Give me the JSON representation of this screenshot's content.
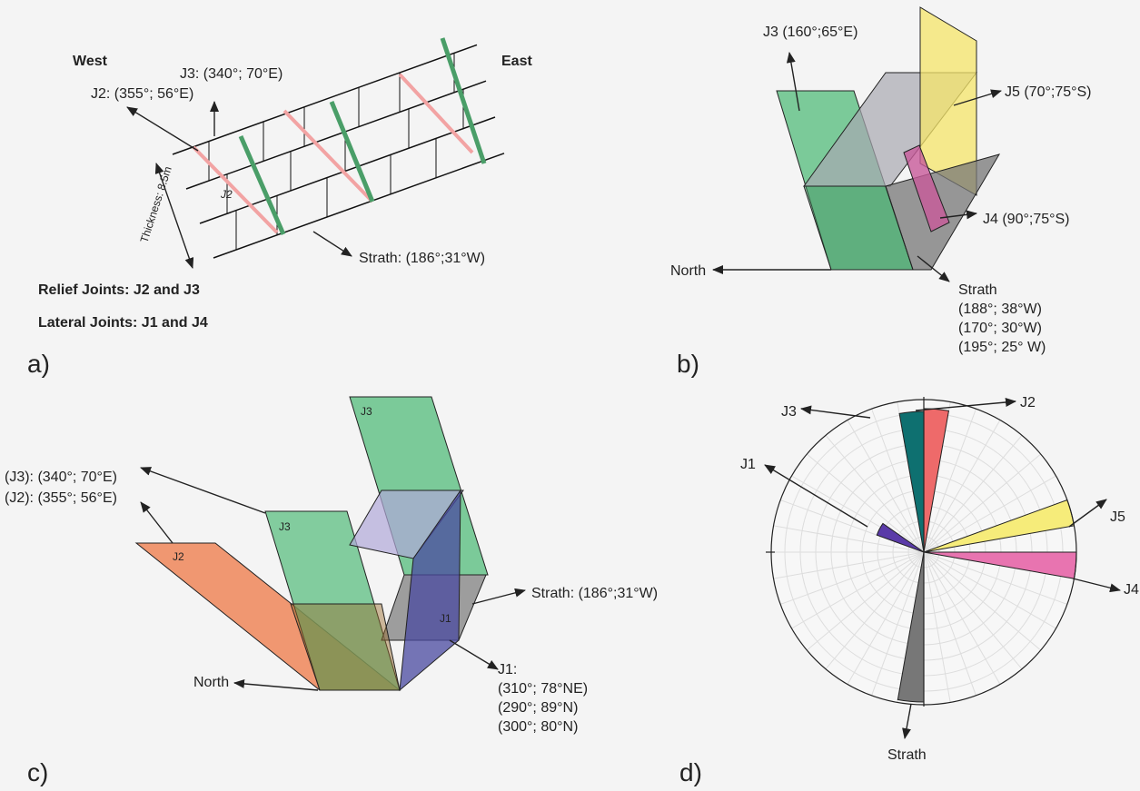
{
  "panel_a": {
    "label": "a)",
    "west": "West",
    "east": "East",
    "j2": "J2: (355°; 56°E)",
    "j3": "J3: (340°; 70°E)",
    "j2_inline": "J2",
    "thickness": "Thickness: 8.5m",
    "strath": "Strath: (186°;31°W)",
    "relief": "Relief Joints: J2 and J3",
    "lateral": "Lateral Joints: J1 and J4"
  },
  "panel_b": {
    "label": "b)",
    "j3": "J3 (160°;65°E)",
    "j5": "J5 (70°;75°S)",
    "j4": "J4 (90°;75°S)",
    "north": "North",
    "strath": {
      "title": "Strath",
      "orientations": [
        "(188°; 38°W)",
        "(170°; 30°W)",
        "(195°; 25° W)"
      ]
    }
  },
  "panel_c": {
    "label": "c)",
    "j3_top": "J3",
    "j3_note": "(J3): (340°; 70°E)",
    "j2_note": "(J2): (355°; 56°E)",
    "j2_plane": "J2",
    "j3_plane": "J3",
    "j1_plane": "J1",
    "strath": "Strath: (186°;31°W)",
    "north": "North",
    "j1": {
      "title": "J1:",
      "orientations": [
        "(310°; 78°NE)",
        "(290°; 89°N)",
        "(300°; 80°N)"
      ]
    }
  },
  "panel_d": {
    "label": "d)",
    "j3": "J3",
    "j2": "J2",
    "j1": "J1",
    "j5": "J5",
    "j4": "J4",
    "strath": "Strath"
  }
}
